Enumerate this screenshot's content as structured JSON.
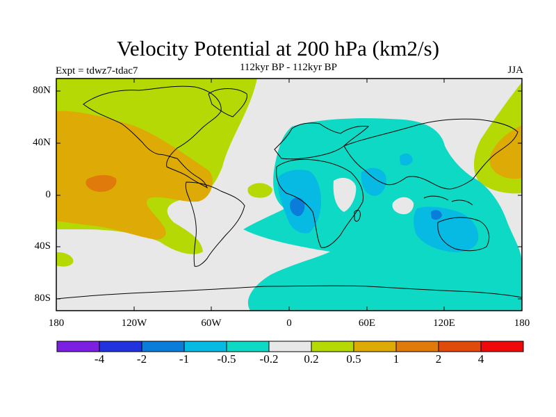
{
  "title": "Velocity Potential at 200 hPa (km2/s)",
  "subtitle": "112kyr BP - 112kyr BP",
  "experiment_label": "Expt = tdwz7-tdac7",
  "season_label": "JJA",
  "lat_labels": [
    "80N",
    "40N",
    "0",
    "40S",
    "80S"
  ],
  "lon_labels": [
    "180",
    "120W",
    "60W",
    "0",
    "60E",
    "120E",
    "180"
  ],
  "colorbar": {
    "colors": [
      "#7b1fe0",
      "#2233dd",
      "#0a7ddb",
      "#06bae3",
      "#0dd9c4",
      "#e8e8e8",
      "#b5d905",
      "#ddaa06",
      "#e07a0a",
      "#e04a0a",
      "#ee0a0a"
    ],
    "labels": [
      "-4",
      "-2",
      "-1",
      "-0.5",
      "-0.2",
      "0.2",
      "0.5",
      "1",
      "2",
      "4"
    ]
  },
  "palette": {
    "neutral": "#e8e8e8",
    "pos_low": "#b5d905",
    "pos_mid": "#ddaa06",
    "pos_high": "#e07a0a",
    "neg_low": "#0dd9c4",
    "neg_mid": "#06bae3",
    "neg_high": "#0a7ddb"
  }
}
